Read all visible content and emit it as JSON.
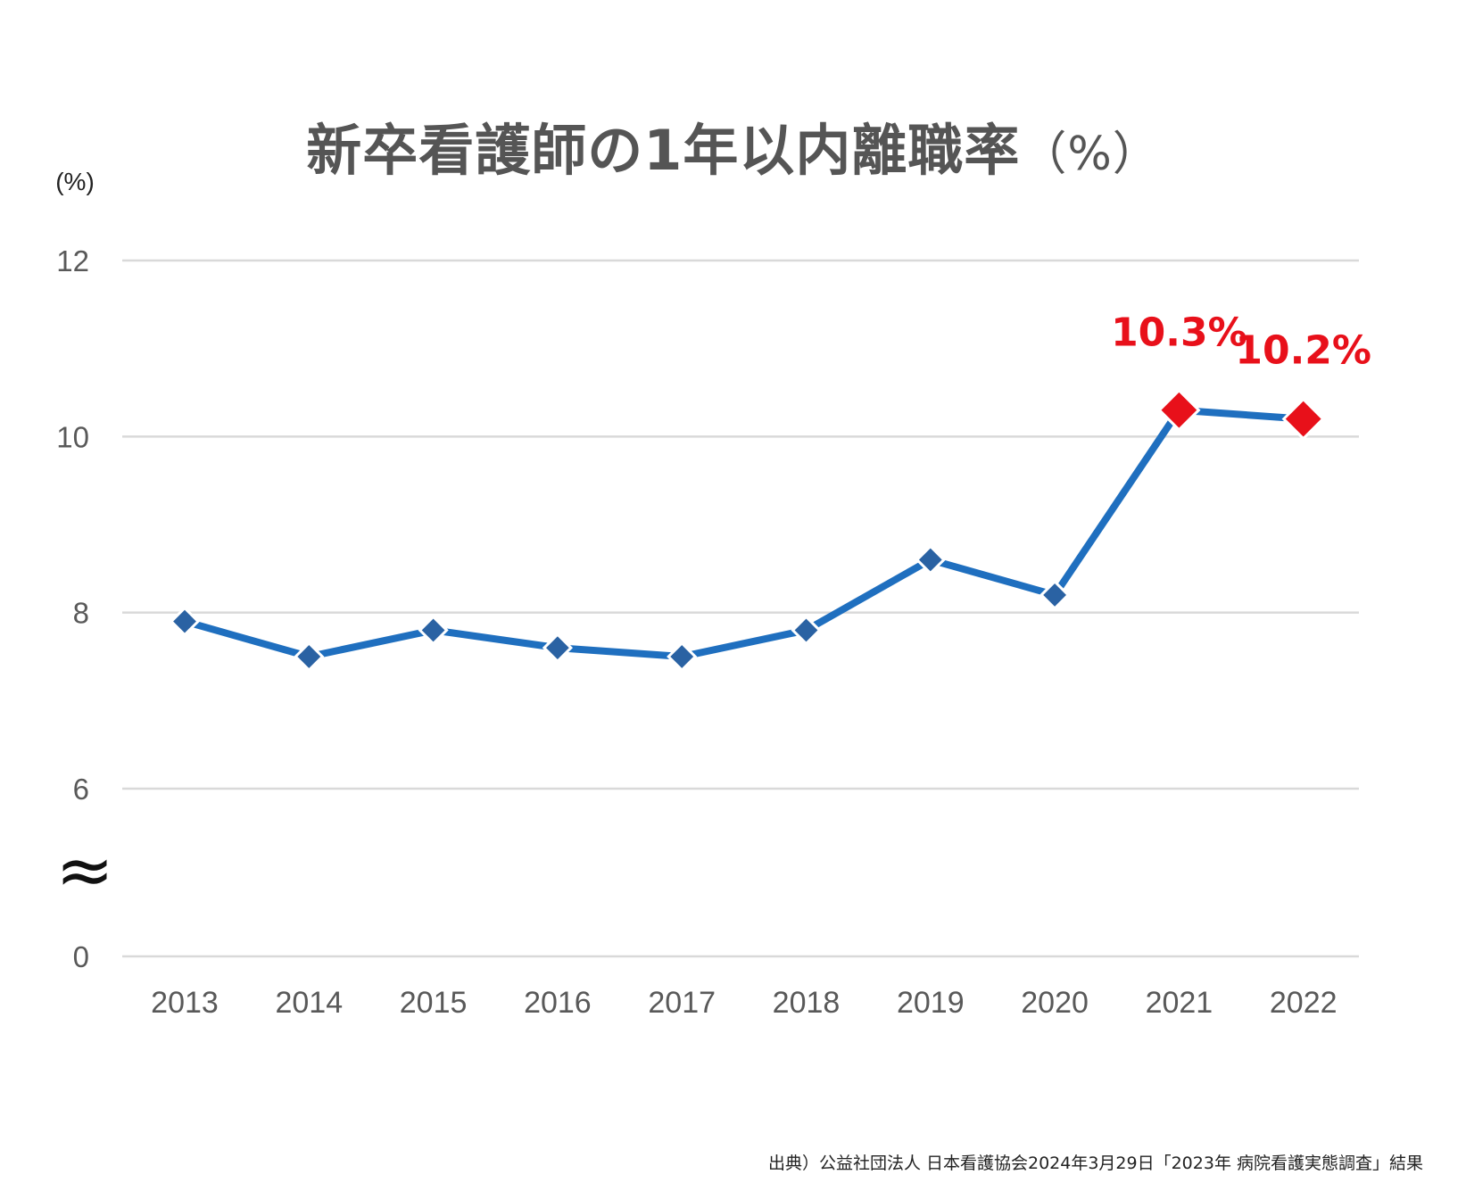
{
  "chart_data": {
    "type": "line",
    "title": "新卒看護師の1年以内離職率",
    "title_unit": "（%）",
    "ylabel": "(%)",
    "xlabel": "",
    "categories": [
      "2013",
      "2014",
      "2015",
      "2016",
      "2017",
      "2018",
      "2019",
      "2020",
      "2021",
      "2022"
    ],
    "series": [
      {
        "name": "新卒看護師の1年以内離職率",
        "values": [
          7.9,
          7.5,
          7.8,
          7.6,
          7.5,
          7.8,
          8.6,
          8.2,
          10.3,
          10.2
        ]
      }
    ],
    "y_ticks": [
      "0",
      "6",
      "8",
      "10",
      "12"
    ],
    "ylim": [
      0,
      12
    ],
    "axis_break": "≈",
    "axis_break_between": [
      0,
      6
    ],
    "grid": true,
    "highlight": [
      {
        "category": "2021",
        "value": 10.3,
        "label": "10.3%"
      },
      {
        "category": "2022",
        "value": 10.2,
        "label": "10.2%"
      }
    ],
    "colors": {
      "line": "#1F6FBF",
      "marker": "#2A62A3",
      "highlight": "#E8101A",
      "grid": "#D9D9D9",
      "text": "#595959"
    }
  },
  "source": "出典）公益社団法人 日本看護協会2024年3月29日「2023年 病院看護実態調査」結果"
}
